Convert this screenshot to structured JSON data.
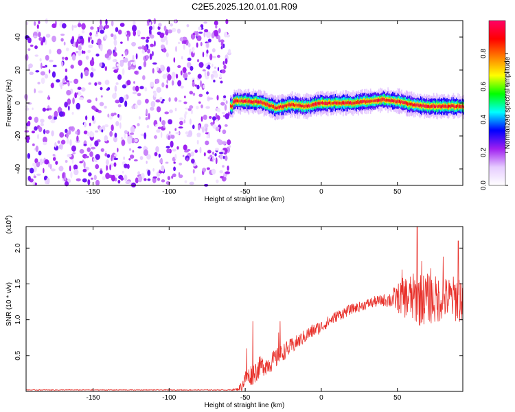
{
  "figure_title": "C2E5.2025.120.01.01.R09",
  "chart_data": [
    {
      "type": "heatmap",
      "title": "C2E5.2025.120.01.01.R09",
      "xlabel": "Height of straight line (km)",
      "ylabel": "Frequency (Hz)",
      "xlim": [
        -194,
        93
      ],
      "ylim": [
        -50,
        50
      ],
      "x_ticks": [
        -150,
        -100,
        -50,
        0,
        50
      ],
      "y_ticks": [
        -40,
        -20,
        0,
        20,
        40
      ],
      "colorbar": {
        "label": "Normalized spectral amplitude",
        "range": [
          0.0,
          1.0
        ],
        "ticks": [
          0.0,
          0.2,
          0.4,
          0.6,
          0.8
        ],
        "tick_labels": [
          "0.0",
          "0.2",
          "0.4",
          "0.6",
          "0.8"
        ],
        "colormap": [
          "#ffffff",
          "#e6ccff",
          "#a020f0",
          "#0000ff",
          "#00ffff",
          "#00ff00",
          "#ffff00",
          "#ff8000",
          "#ff0000",
          "#ff0066"
        ]
      },
      "noise_region": {
        "x_range": [
          -194,
          -60
        ],
        "typical_amplitude": 0.12
      },
      "signal_band": {
        "x_range": [
          -60,
          93
        ],
        "center_frequency": [
          [
            -58,
            1
          ],
          [
            -50,
            1
          ],
          [
            -40,
            0.5
          ],
          [
            -30,
            -3
          ],
          [
            -20,
            -1
          ],
          [
            -10,
            -2
          ],
          [
            0,
            0
          ],
          [
            10,
            0
          ],
          [
            20,
            0
          ],
          [
            30,
            1
          ],
          [
            40,
            2
          ],
          [
            50,
            1
          ],
          [
            60,
            -1
          ],
          [
            70,
            -2
          ],
          [
            80,
            -2
          ],
          [
            93,
            -2
          ]
        ],
        "half_width_hz": 3,
        "peak_amplitude": 0.95
      },
      "grid": false
    },
    {
      "type": "line",
      "xlabel": "Height of straight line (km)",
      "ylabel": "SNR (10 * v/v)",
      "y_multiplier": "(x10",
      "y_multiplier_exp": "4",
      "xlim": [
        -194,
        93
      ],
      "ylim": [
        0,
        2.3
      ],
      "x_ticks": [
        -150,
        -100,
        -50,
        0,
        50
      ],
      "y_ticks": [
        0.5,
        1.0,
        1.5,
        2.0
      ],
      "y_tick_labels": [
        "0.5",
        "1.0",
        "1.5",
        "2.0"
      ],
      "series": [
        {
          "color": "#e8302a",
          "x": [
            -194,
            -100,
            -60,
            -55,
            -52,
            -50,
            -48,
            -45,
            -42,
            -40,
            -35,
            -30,
            -25,
            -20,
            -15,
            -10,
            -5,
            0,
            5,
            10,
            15,
            20,
            25,
            30,
            35,
            40,
            45,
            50,
            55,
            60,
            65,
            70,
            75,
            80,
            85,
            90,
            93
          ],
          "mean": [
            0.02,
            0.02,
            0.02,
            0.03,
            0.08,
            0.18,
            0.2,
            0.25,
            0.3,
            0.35,
            0.38,
            0.45,
            0.55,
            0.62,
            0.7,
            0.78,
            0.85,
            0.9,
            0.98,
            1.05,
            1.1,
            1.15,
            1.18,
            1.22,
            1.25,
            1.27,
            1.28,
            1.3,
            1.32,
            1.3,
            1.28,
            1.3,
            1.27,
            1.3,
            1.3,
            1.3,
            1.3
          ],
          "spread": [
            0.005,
            0.005,
            0.005,
            0.02,
            0.08,
            0.12,
            0.14,
            0.16,
            0.15,
            0.15,
            0.14,
            0.14,
            0.12,
            0.12,
            0.1,
            0.1,
            0.1,
            0.09,
            0.08,
            0.08,
            0.08,
            0.07,
            0.07,
            0.07,
            0.08,
            0.08,
            0.12,
            0.2,
            0.3,
            0.35,
            0.38,
            0.35,
            0.35,
            0.3,
            0.3,
            0.35,
            0.35
          ],
          "spikes": [
            [
              -49,
              0.6
            ],
            [
              -45,
              0.98
            ],
            [
              -27,
              0.98
            ],
            [
              -28,
              0.82
            ],
            [
              53,
              1.7
            ],
            [
              63,
              2.3
            ],
            [
              66,
              1.82
            ],
            [
              72,
              1.72
            ],
            [
              80,
              1.88
            ],
            [
              90,
              2.1
            ]
          ]
        }
      ],
      "grid": false
    }
  ]
}
